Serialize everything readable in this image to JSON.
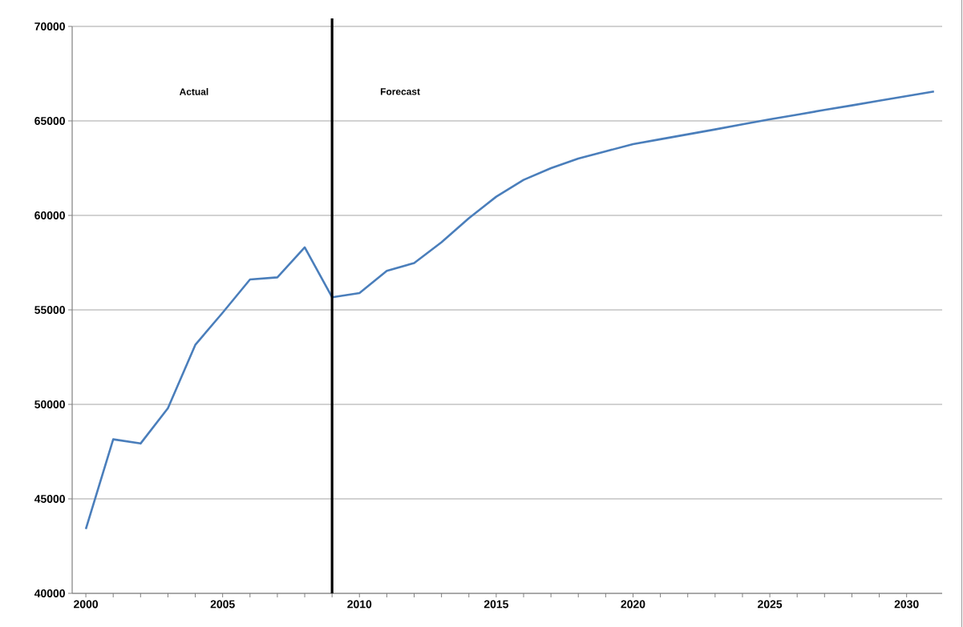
{
  "chart_data": {
    "type": "line",
    "x": [
      2000,
      2001,
      2002,
      2003,
      2004,
      2005,
      2006,
      2007,
      2008,
      2009,
      2010,
      2011,
      2012,
      2013,
      2014,
      2015,
      2016,
      2017,
      2018,
      2019,
      2020,
      2021,
      2022,
      2023,
      2024,
      2025,
      2026,
      2027,
      2028,
      2029,
      2030,
      2031
    ],
    "series": [
      {
        "color": "#4a7ebb",
        "values": [
          43400,
          48150,
          47930,
          49800,
          53150,
          54850,
          56610,
          56720,
          58310,
          55670,
          55890,
          57070,
          57480,
          58580,
          59850,
          60990,
          61880,
          62500,
          63010,
          63390,
          63770,
          64030,
          64290,
          64550,
          64820,
          65080,
          65330,
          65580,
          65820,
          66070,
          66310,
          66560
        ]
      }
    ],
    "xlim": [
      1999.5,
      2031.3
    ],
    "xticks": [
      2000,
      2005,
      2010,
      2015,
      2020,
      2025,
      2030
    ],
    "ylim": [
      40000,
      70000
    ],
    "yticks": [
      40000,
      45000,
      50000,
      55000,
      60000,
      65000,
      70000
    ],
    "grid": "y",
    "marker": "none",
    "line_style": "solid",
    "ref_lines": [
      {
        "axis": "x",
        "value": 2009,
        "color": "#000000"
      }
    ],
    "annotations": [
      "Actual",
      "Forecast"
    ]
  }
}
